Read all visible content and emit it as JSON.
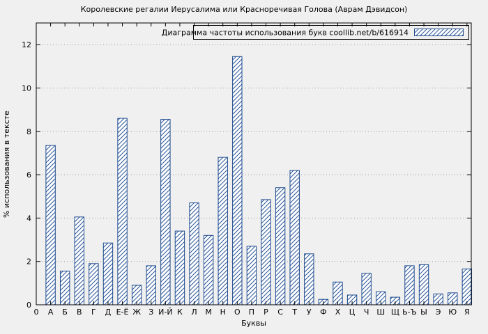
{
  "chart_data": {
    "type": "bar",
    "title": "Королевские регалии Иерусалима или Красноречивая Голова (Аврам Дэвидсон)",
    "legend": "Диаграмма частоты использования букв coollib.net/b/616914",
    "legend_position": "top-right",
    "xlabel": "Буквы",
    "ylabel": "% использования в тексте",
    "origin_label": "0",
    "categories": [
      "А",
      "Б",
      "В",
      "Г",
      "Д",
      "Е-Ё",
      "Ж",
      "З",
      "И-Й",
      "К",
      "Л",
      "М",
      "Н",
      "О",
      "П",
      "Р",
      "С",
      "Т",
      "У",
      "Ф",
      "Х",
      "Ц",
      "Ч",
      "Ш",
      "Щ",
      "Ь-Ъ",
      "Ы",
      "Э",
      "Ю",
      "Я"
    ],
    "values": [
      7.35,
      1.55,
      4.05,
      1.9,
      2.85,
      8.6,
      0.9,
      1.8,
      8.55,
      3.4,
      4.7,
      3.2,
      6.8,
      11.45,
      2.7,
      4.85,
      5.4,
      6.2,
      2.35,
      0.25,
      1.05,
      0.45,
      1.45,
      0.6,
      0.35,
      1.8,
      1.85,
      0.5,
      0.55,
      1.65
    ],
    "ylim": [
      0,
      13
    ],
    "yticks": [
      0,
      2,
      4,
      6,
      8,
      10,
      12
    ],
    "grid": true,
    "bar_fill": "#ffffff",
    "bar_color": "#1c4a8c",
    "background": "#f0f0f0"
  }
}
